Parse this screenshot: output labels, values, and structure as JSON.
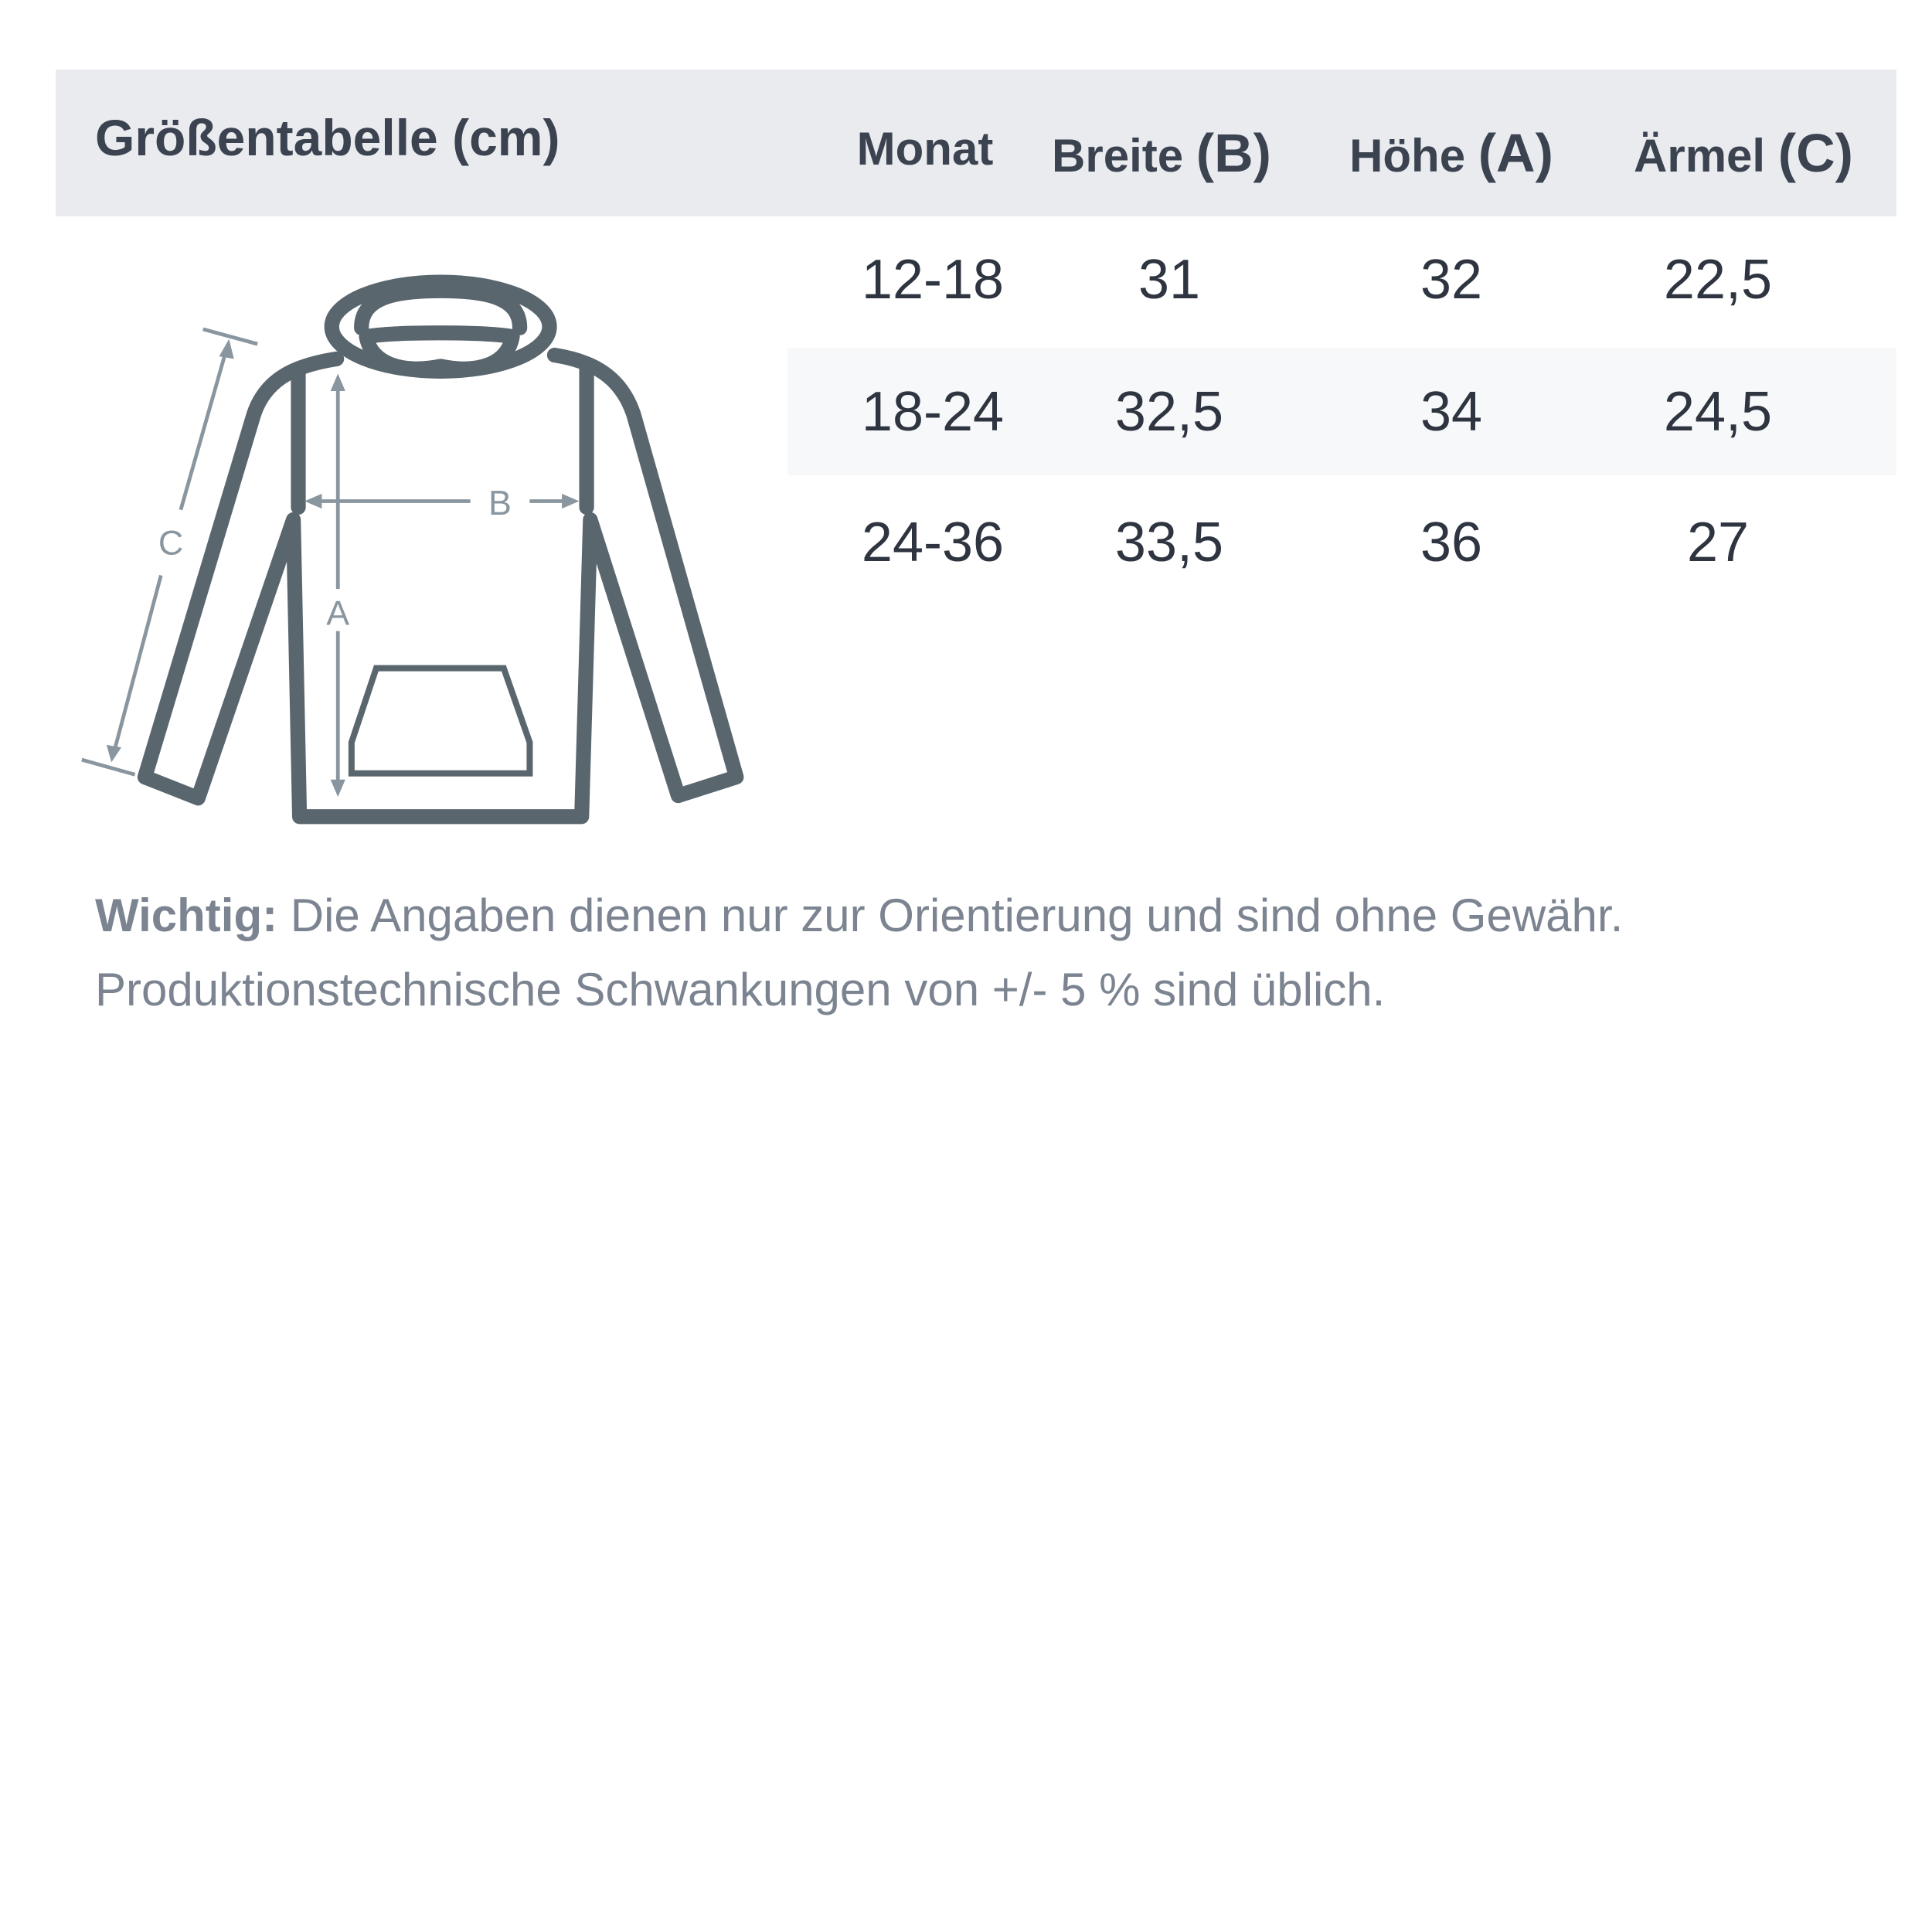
{
  "title": "Größentabelle (cm)",
  "columns": [
    {
      "label": "Monat",
      "letter": ""
    },
    {
      "label": "Breite",
      "letter": "(B)"
    },
    {
      "label": "Höhe",
      "letter": "(A)"
    },
    {
      "label": "Ärmel",
      "letter": "(C)"
    }
  ],
  "rows": [
    [
      "12-18",
      "31",
      "32",
      "22,5"
    ],
    [
      "18-24",
      "32,5",
      "34",
      "24,5"
    ],
    [
      "24-36",
      "33,5",
      "36",
      "27"
    ]
  ],
  "diagram": {
    "label_a": "A",
    "label_b": "B",
    "label_c": "C"
  },
  "note": {
    "bold": "Wichtig:",
    "line1": " Die Angaben dienen nur zur Orientierung und sind ohne Gewähr.",
    "line2": "Produktionstechnische Schwankungen von +/- 5 % sind üblich."
  },
  "colors": {
    "header_bg": "#e9ebef",
    "stripe_bg": "#f7f8fa",
    "outline": "#5a666e",
    "measure": "#8a969f"
  }
}
